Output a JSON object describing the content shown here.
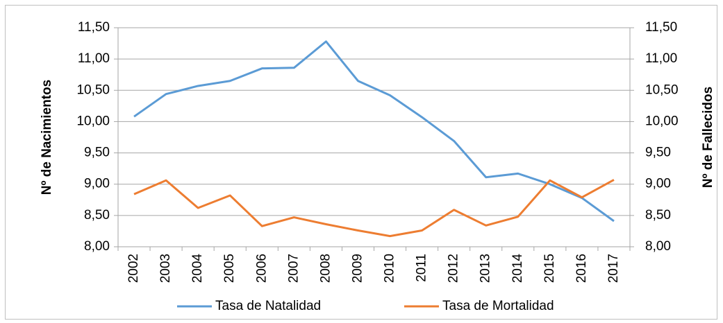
{
  "chart_data": {
    "type": "line",
    "y_label": "Nº de Nacimientos",
    "y2_label": "Nº de Fallecidos",
    "categories": [
      "2002",
      "2003",
      "2004",
      "2005",
      "2006",
      "2007",
      "2008",
      "2009",
      "2010",
      "2011",
      "2012",
      "2013",
      "2014",
      "2015",
      "2016",
      "2017"
    ],
    "series": [
      {
        "name": "Tasa de Natalidad",
        "color": "#5b9bd5",
        "values": [
          10.08,
          10.44,
          10.57,
          10.65,
          10.85,
          10.86,
          11.28,
          10.65,
          10.42,
          10.07,
          9.69,
          9.11,
          9.17,
          9.0,
          8.78,
          8.41
        ]
      },
      {
        "name": "Tasa de Mortalidad",
        "color": "#ed7d31",
        "axis": "y2",
        "values": [
          8.84,
          9.06,
          8.62,
          8.82,
          8.33,
          8.47,
          8.36,
          8.26,
          8.17,
          8.26,
          8.59,
          8.34,
          8.48,
          9.06,
          8.79,
          9.07
        ]
      }
    ],
    "ylim": [
      8,
      11.5
    ],
    "yticks": [
      {
        "value": 8,
        "label": "8,00"
      },
      {
        "value": 8.5,
        "label": "8,50"
      },
      {
        "value": 9,
        "label": "9,00"
      },
      {
        "value": 9.5,
        "label": "9,50"
      },
      {
        "value": 10,
        "label": "10,00"
      },
      {
        "value": 10.5,
        "label": "10,50"
      },
      {
        "value": 11,
        "label": "11,00"
      },
      {
        "value": 11.5,
        "label": "11,50"
      }
    ],
    "y2lim": [
      8,
      11.5
    ],
    "y2ticks": [
      {
        "value": 8,
        "label": "8,00"
      },
      {
        "value": 8.5,
        "label": "8,50"
      },
      {
        "value": 9,
        "label": "9,00"
      },
      {
        "value": 9.5,
        "label": "9,50"
      },
      {
        "value": 10,
        "label": "10,00"
      },
      {
        "value": 10.5,
        "label": "10,50"
      },
      {
        "value": 11,
        "label": "11,00"
      },
      {
        "value": 11.5,
        "label": "11,50"
      }
    ],
    "grid": true,
    "legend": "bottom"
  }
}
